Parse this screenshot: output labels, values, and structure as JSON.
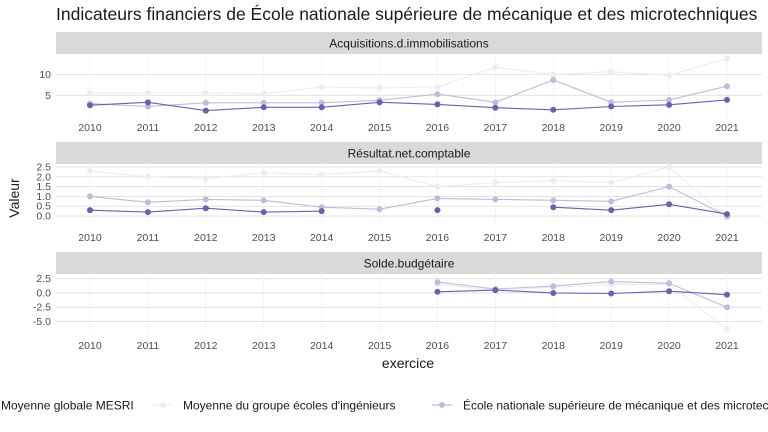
{
  "chart_data": {
    "type": "line",
    "title": "Indicateurs financiers de École nationale supérieure de mécanique et des microtechniques",
    "xlabel": "exercice",
    "ylabel": "Valeur",
    "x": [
      2010,
      2011,
      2012,
      2013,
      2014,
      2015,
      2016,
      2017,
      2018,
      2019,
      2020,
      2021
    ],
    "x_tick_labels": [
      "2010",
      "2011",
      "2012",
      "2013",
      "2014",
      "2015",
      "2016",
      "2017",
      "2018",
      "2019",
      "2020",
      "2021"
    ],
    "legend_position": "bottom",
    "colors": {
      "Moyenne globale MESRI": "#ececf4",
      "Moyenne du groupe écoles d'ingénieurs": "#bcbddc",
      "École nationale supérieure de mécanique et des microtechniques": "#6a60ad"
    },
    "panels": [
      {
        "strip": "Acquisitions.d.immobilisations",
        "ylim": [
          0,
          14.5
        ],
        "y_ticks": [
          5,
          10
        ],
        "y_tick_labels": [
          "5",
          "10"
        ],
        "series": [
          {
            "name": "Moyenne globale MESRI",
            "values": [
              5.5,
              5.6,
              5.6,
              5.4,
              7.0,
              6.8,
              7.0,
              11.8,
              10.0,
              10.7,
              9.8,
              13.9
            ]
          },
          {
            "name": "Moyenne du groupe écoles d'ingénieurs",
            "values": [
              3.0,
              2.3,
              3.2,
              3.2,
              3.2,
              3.8,
              5.3,
              3.3,
              8.7,
              3.3,
              3.9,
              7.2
            ]
          },
          {
            "name": "École nationale supérieure de mécanique et des microtechniques",
            "values": [
              2.6,
              3.3,
              1.3,
              2.1,
              2.1,
              3.3,
              2.8,
              2.0,
              1.5,
              2.3,
              2.7,
              3.9
            ]
          }
        ]
      },
      {
        "strip": "Résultat.net.comptable",
        "ylim": [
          -0.2,
          2.7
        ],
        "y_ticks": [
          0.0,
          0.5,
          1.0,
          1.5,
          2.0,
          2.5
        ],
        "y_tick_labels": [
          "0.0",
          "0.5",
          "1.0",
          "1.5",
          "2.0",
          "2.5"
        ],
        "series": [
          {
            "name": "Moyenne globale MESRI",
            "values": [
              2.3,
              2.0,
              1.9,
              2.2,
              2.1,
              2.3,
              1.5,
              1.7,
              1.8,
              1.7,
              2.5,
              -0.1
            ]
          },
          {
            "name": "Moyenne du groupe écoles d'ingénieurs",
            "values": [
              1.0,
              0.7,
              0.85,
              0.8,
              0.45,
              0.35,
              0.9,
              0.85,
              0.8,
              0.75,
              1.5,
              0.0
            ]
          },
          {
            "name": "École nationale supérieure de mécanique et des microtechniques",
            "values": [
              0.3,
              0.2,
              0.4,
              0.2,
              0.25,
              null,
              0.3,
              null,
              0.45,
              0.3,
              0.6,
              0.1
            ]
          }
        ]
      },
      {
        "strip": "Solde.budgétaire",
        "ylim": [
          -6.5,
          3.5
        ],
        "y_ticks": [
          -5.0,
          -2.5,
          0.0,
          2.5
        ],
        "y_tick_labels": [
          "-5.0",
          "-2.5",
          "0.0",
          "2.5"
        ],
        "series": [
          {
            "name": "Moyenne globale MESRI",
            "values": [
              null,
              null,
              null,
              null,
              null,
              null,
              1.5,
              0.5,
              1.0,
              1.5,
              1.5,
              -6.3
            ]
          },
          {
            "name": "Moyenne du groupe écoles d'ingénieurs",
            "values": [
              null,
              null,
              null,
              null,
              null,
              null,
              1.9,
              0.7,
              1.2,
              2.0,
              1.7,
              -2.5
            ]
          },
          {
            "name": "École nationale supérieure de mécanique et des microtechniques",
            "values": [
              null,
              null,
              null,
              null,
              null,
              null,
              0.2,
              0.5,
              0.0,
              -0.1,
              0.3,
              -0.3
            ]
          }
        ]
      }
    ]
  }
}
